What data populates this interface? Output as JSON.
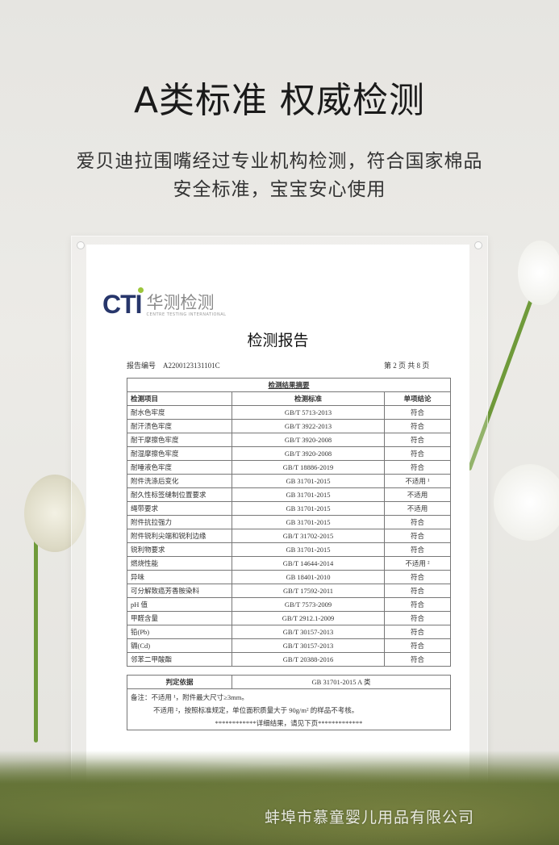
{
  "header": {
    "title": "A类标准 权威检测",
    "subtitle_line1": "爱贝迪拉围嘴经过专业机构检测，符合国家棉品",
    "subtitle_line2": "安全标准，宝宝安心使用"
  },
  "report": {
    "logo": {
      "brand": "CTI",
      "cn": "华测检测",
      "en": "CENTRE TESTING INTERNATIONAL"
    },
    "title": "检测报告",
    "number_label": "报告编号",
    "number": "A2200123131101C",
    "page": "第 2 页   共 8 页",
    "summary_title": "检测结果摘要",
    "columns": [
      "检测项目",
      "检测标准",
      "单项结论"
    ],
    "rows": [
      [
        "耐水色牢度",
        "GB/T 5713-2013",
        "符合"
      ],
      [
        "耐汗渍色牢度",
        "GB/T 3922-2013",
        "符合"
      ],
      [
        "耐干摩擦色牢度",
        "GB/T 3920-2008",
        "符合"
      ],
      [
        "耐湿摩擦色牢度",
        "GB/T 3920-2008",
        "符合"
      ],
      [
        "耐唾液色牢度",
        "GB/T 18886-2019",
        "符合"
      ],
      [
        "附件洗涤后变化",
        "GB 31701-2015",
        "不适用 ¹"
      ],
      [
        "耐久性标签缝制位置要求",
        "GB 31701-2015",
        "不适用"
      ],
      [
        "绳带要求",
        "GB 31701-2015",
        "不适用"
      ],
      [
        "附件抗拉强力",
        "GB 31701-2015",
        "符合"
      ],
      [
        "附件锐利尖端和锐利边缘",
        "GB/T 31702-2015",
        "符合"
      ],
      [
        "锐利物要求",
        "GB 31701-2015",
        "符合"
      ],
      [
        "燃烧性能",
        "GB/T 14644-2014",
        "不适用 ²"
      ],
      [
        "异味",
        "GB 18401-2010",
        "符合"
      ],
      [
        "可分解致癌芳香胺染料",
        "GB/T 17592-2011",
        "符合"
      ],
      [
        "pH 值",
        "GB/T 7573-2009",
        "符合"
      ],
      [
        "甲醛含量",
        "GB/T 2912.1-2009",
        "符合"
      ],
      [
        "铅(Pb)",
        "GB/T 30157-2013",
        "符合"
      ],
      [
        "镉(Cd)",
        "GB/T 30157-2013",
        "符合"
      ],
      [
        "邻苯二甲酸酯",
        "GB/T 20388-2016",
        "符合"
      ]
    ],
    "basis_label": "判定依据",
    "basis": "GB 31701-2015 A 类",
    "note1": "备注：不适用 ¹，附件最大尺寸≥3mm。",
    "note2": "不适用 ²，按照标准规定，单位面积质量大于 90g/m² 的样品不考核。",
    "note3": "************详细结果，请见下页*************"
  },
  "watermark": "蚌埠市慕童婴儿用品有限公司"
}
